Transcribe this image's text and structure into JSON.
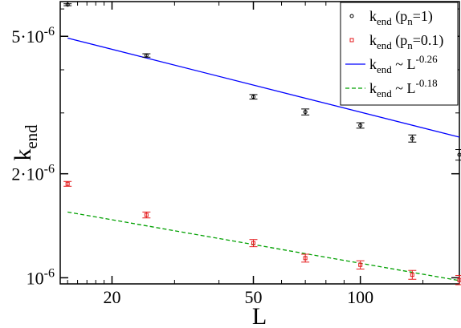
{
  "chart_data": {
    "type": "scatter",
    "xlabel": "L",
    "ylabel": "k_end",
    "xscale": "log",
    "yscale": "log",
    "xlim": [
      14.3,
      190
    ],
    "ylim": [
      9.6e-07,
      6.3e-06
    ],
    "grid": false,
    "legend_position": "top-right",
    "x_ticks": [
      {
        "value": 20,
        "label": "20"
      },
      {
        "value": 50,
        "label": "50"
      },
      {
        "value": 100,
        "label": "100"
      }
    ],
    "y_ticks": [
      {
        "value": 1e-06,
        "base": "10",
        "exp": "-6"
      },
      {
        "value": 2e-06,
        "base": "2·10",
        "exp": "-6"
      },
      {
        "value": 5e-06,
        "base": "5·10",
        "exp": "-6"
      }
    ],
    "series": [
      {
        "name": "k_end (p_n=1)",
        "legend": {
          "main": "k",
          "sub": "end",
          "paren_main": " (p",
          "paren_sub": "n",
          "paren_tail": "=1)"
        },
        "marker": "circle",
        "color": "#000000",
        "points": [
          {
            "x": 15,
            "y": 6.17e-06,
            "err": 4e-08
          },
          {
            "x": 25,
            "y": 4.4e-06,
            "err": 5e-08
          },
          {
            "x": 50,
            "y": 3.34e-06,
            "err": 5e-08
          },
          {
            "x": 70,
            "y": 3.02e-06,
            "err": 6e-08
          },
          {
            "x": 100,
            "y": 2.76e-06,
            "err": 5e-08
          },
          {
            "x": 140,
            "y": 2.53e-06,
            "err": 6e-08
          },
          {
            "x": 190,
            "y": 2.27e-06,
            "err": 8e-08
          }
        ]
      },
      {
        "name": "k_end (p_n=0.1)",
        "legend": {
          "main": "k",
          "sub": "end",
          "paren_main": " (p",
          "paren_sub": "n",
          "paren_tail": "=0.1)"
        },
        "marker": "square",
        "color": "#e41a1c",
        "points": [
          {
            "x": 15,
            "y": 1.87e-06,
            "err": 3e-08
          },
          {
            "x": 25,
            "y": 1.52e-06,
            "err": 3e-08
          },
          {
            "x": 50,
            "y": 1.26e-06,
            "err": 3e-08
          },
          {
            "x": 70,
            "y": 1.14e-06,
            "err": 3e-08
          },
          {
            "x": 100,
            "y": 1.09e-06,
            "err": 3e-08
          },
          {
            "x": 140,
            "y": 1.02e-06,
            "err": 3e-08
          },
          {
            "x": 190,
            "y": 9.85e-07,
            "err": 3e-08
          }
        ]
      }
    ],
    "fits": [
      {
        "name": "k_end ~ L^-0.26",
        "legend": {
          "main": "k",
          "sub": "end",
          "mid": " ~ L",
          "sup": "-0.26"
        },
        "style": "solid",
        "color": "#0000ff",
        "x_range": [
          15,
          190
        ],
        "y_at_start": 4.94e-06,
        "exponent": -0.26
      },
      {
        "name": "k_end ~ L^-0.18",
        "legend": {
          "main": "k",
          "sub": "end",
          "mid": " ~ L",
          "sup": "-0.18"
        },
        "style": "dashed",
        "color": "#00a000",
        "x_range": [
          15,
          190
        ],
        "y_at_start": 1.55e-06,
        "exponent": -0.18
      }
    ]
  }
}
